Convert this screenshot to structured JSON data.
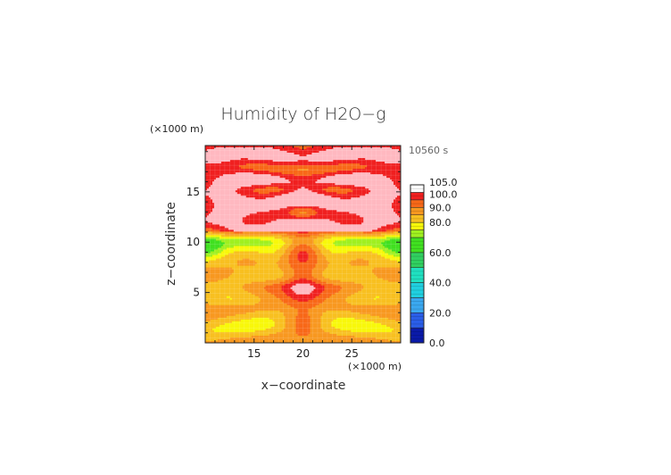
{
  "chart_data": {
    "type": "heatmap",
    "title": "Humidity of H2O−g",
    "xlabel": "x−coordinate",
    "ylabel": "z−coordinate",
    "x_unit_label": "(×1000 m)",
    "y_unit_label": "(×1000 m)",
    "time_label": "10560 s",
    "xlim": [
      10,
      30
    ],
    "ylim": [
      0,
      19.6
    ],
    "x_ticks": [
      15,
      20,
      25
    ],
    "y_ticks": [
      5,
      10,
      15
    ],
    "x_tick_labels": [
      "15",
      "20",
      "25"
    ],
    "y_tick_labels": [
      "5",
      "10",
      "15"
    ],
    "grid": true,
    "colorbar": {
      "placement": "right",
      "min": 0,
      "max": 105,
      "labels": [
        "105.0",
        "100.0",
        "90.0",
        "80.0",
        "60.0",
        "40.0",
        "20.0",
        "0.0"
      ],
      "label_values": [
        105,
        100,
        90,
        80,
        60,
        40,
        20,
        0
      ],
      "levels": [
        {
          "from": 0,
          "to": 10,
          "color": "#0a1aa8"
        },
        {
          "from": 10,
          "to": 20,
          "color": "#2a5ee8"
        },
        {
          "from": 20,
          "to": 30,
          "color": "#3aa8f0"
        },
        {
          "from": 30,
          "to": 40,
          "color": "#20d0e0"
        },
        {
          "from": 40,
          "to": 50,
          "color": "#20e0c0"
        },
        {
          "from": 50,
          "to": 60,
          "color": "#30d060"
        },
        {
          "from": 60,
          "to": 70,
          "color": "#40e020"
        },
        {
          "from": 70,
          "to": 75,
          "color": "#a0f020"
        },
        {
          "from": 75,
          "to": 80,
          "color": "#f8f80a"
        },
        {
          "from": 80,
          "to": 85,
          "color": "#f8c020"
        },
        {
          "from": 85,
          "to": 90,
          "color": "#f89820"
        },
        {
          "from": 90,
          "to": 95,
          "color": "#f86818"
        },
        {
          "from": 95,
          "to": 100,
          "color": "#f02020"
        },
        {
          "from": 100,
          "to": 105,
          "color": "#ffb8c0"
        }
      ]
    }
  }
}
